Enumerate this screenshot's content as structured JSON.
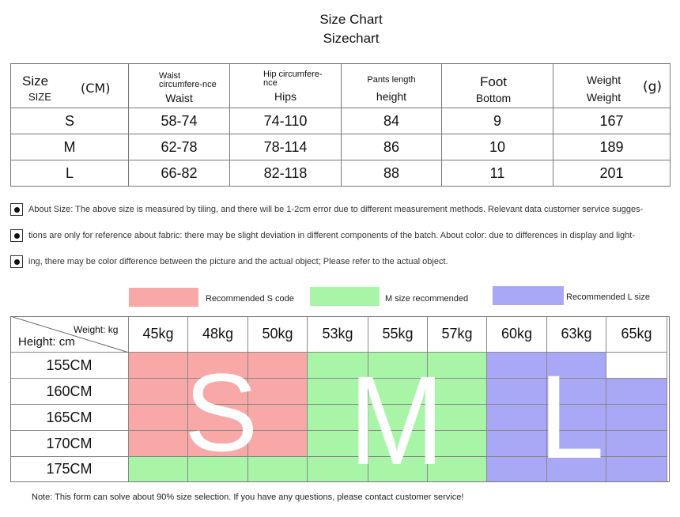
{
  "title": {
    "line1": "Size Chart",
    "line2": "Sizechart"
  },
  "measure_table": {
    "header": {
      "size_top": "Size",
      "size_bottom": "SIZE",
      "unit_cm": "(CM)",
      "waist_small": "Waist circumfere-nce",
      "waist": "Waist",
      "hip_small": "Hip circumfere-nce",
      "hips": "Hips",
      "pants_small": "Pants length",
      "height": "height",
      "foot": "Foot",
      "bottom": "Bottom",
      "weight_top": "Weight",
      "weight_bottom": "Weight",
      "unit_g": "(g)"
    },
    "rows": [
      {
        "size": "S",
        "waist": "58-74",
        "hips": "74-110",
        "length": "84",
        "foot": "9",
        "weight": "167"
      },
      {
        "size": "M",
        "waist": "62-78",
        "hips": "78-114",
        "length": "86",
        "foot": "10",
        "weight": "189"
      },
      {
        "size": "L",
        "waist": "66-82",
        "hips": "82-118",
        "length": "88",
        "foot": "11",
        "weight": "201"
      }
    ]
  },
  "notes": [
    "About Size: The above size is measured by tiling, and there will be 1-2cm error due to different measurement methods. Relevant data customer service sugges-",
    "tions are only for reference about fabric: there may be slight deviation in different components of the batch. About color: due to differences in display and light-",
    "ing, there may be color difference between the picture and the actual object; Please refer to the actual object."
  ],
  "legend": {
    "s": {
      "label": "Recommended S code",
      "color": "#f9a8a8"
    },
    "m": {
      "label": "M size recommended",
      "color": "#a8f5a8"
    },
    "l": {
      "label": "Recommended L size",
      "color": "#a8a8f7"
    }
  },
  "fit_grid": {
    "corner_weight": "Weight: kg",
    "corner_height": "Height: cm",
    "weights": [
      "45kg",
      "48kg",
      "50kg",
      "53kg",
      "55kg",
      "57kg",
      "60kg",
      "63kg",
      "65kg"
    ],
    "heights": [
      "155CM",
      "160CM",
      "165CM",
      "170CM",
      "175CM"
    ],
    "cells": [
      [
        "S",
        "S",
        "S",
        "M",
        "M",
        "M",
        "L",
        "L",
        ""
      ],
      [
        "S",
        "S",
        "S",
        "M",
        "M",
        "M",
        "L",
        "L",
        "L"
      ],
      [
        "S",
        "S",
        "S",
        "M",
        "M",
        "M",
        "L",
        "L",
        "L"
      ],
      [
        "S",
        "S",
        "S",
        "M",
        "M",
        "M",
        "L",
        "L",
        "L"
      ],
      [
        "M",
        "M",
        "M",
        "M",
        "M",
        "M",
        "L",
        "L",
        "L"
      ]
    ],
    "big_letters": {
      "s": "S",
      "m": "M",
      "l": "L"
    }
  },
  "footer": "Note: This form can solve about 90% size selection. If you have any questions, please contact customer service!"
}
